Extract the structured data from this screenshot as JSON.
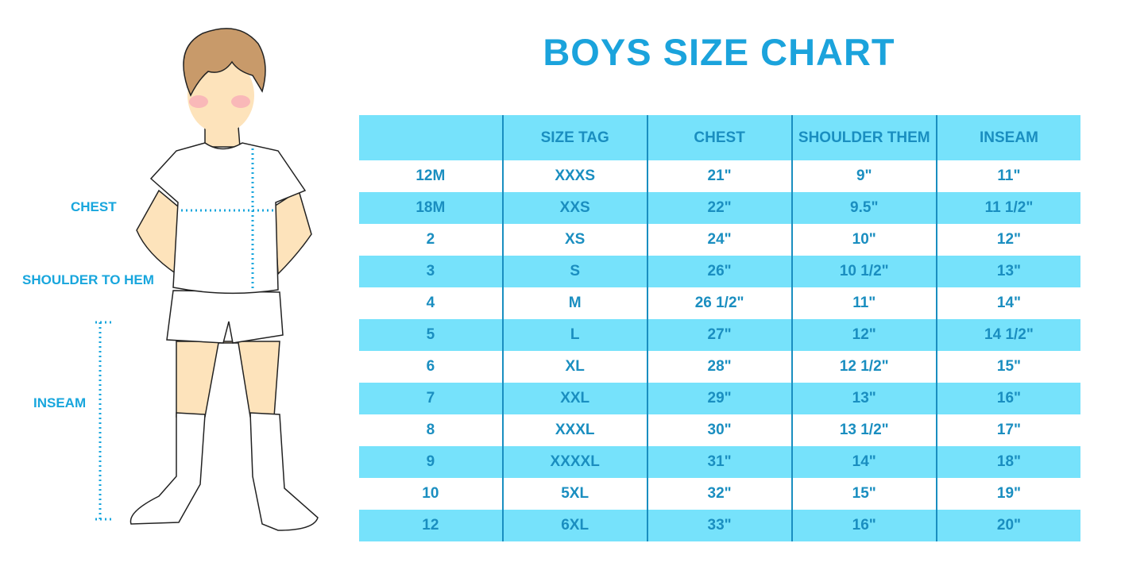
{
  "title": "BOYS SIZE CHART",
  "figure_labels": {
    "chest": "CHEST",
    "shoulder_to_hem": "SHOULDER TO HEM",
    "inseam": "INSEAM"
  },
  "colors": {
    "title": "#1ba3dc",
    "header_bg": "#76e2fb",
    "table_text": "#1a8ec0"
  },
  "table": {
    "headers": [
      "",
      "SIZE TAG",
      "CHEST",
      "SHOULDER THEM",
      "INSEAM"
    ],
    "rows": [
      [
        "12M",
        "XXXS",
        "21\"",
        "9\"",
        "11\""
      ],
      [
        "18M",
        "XXS",
        "22\"",
        "9.5\"",
        "11 1/2\""
      ],
      [
        "2",
        "XS",
        "24\"",
        "10\"",
        "12\""
      ],
      [
        "3",
        "S",
        "26\"",
        "10 1/2\"",
        "13\""
      ],
      [
        "4",
        "M",
        "26 1/2\"",
        "11\"",
        "14\""
      ],
      [
        "5",
        "L",
        "27\"",
        "12\"",
        "14 1/2\""
      ],
      [
        "6",
        "XL",
        "28\"",
        "12 1/2\"",
        "15\""
      ],
      [
        "7",
        "XXL",
        "29\"",
        "13\"",
        "16\""
      ],
      [
        "8",
        "XXXL",
        "30\"",
        "13 1/2\"",
        "17\""
      ],
      [
        "9",
        "XXXXL",
        "31\"",
        "14\"",
        "18\""
      ],
      [
        "10",
        "5XL",
        "32\"",
        "15\"",
        "19\""
      ],
      [
        "12",
        "6XL",
        "33\"",
        "16\"",
        "20\""
      ]
    ]
  }
}
